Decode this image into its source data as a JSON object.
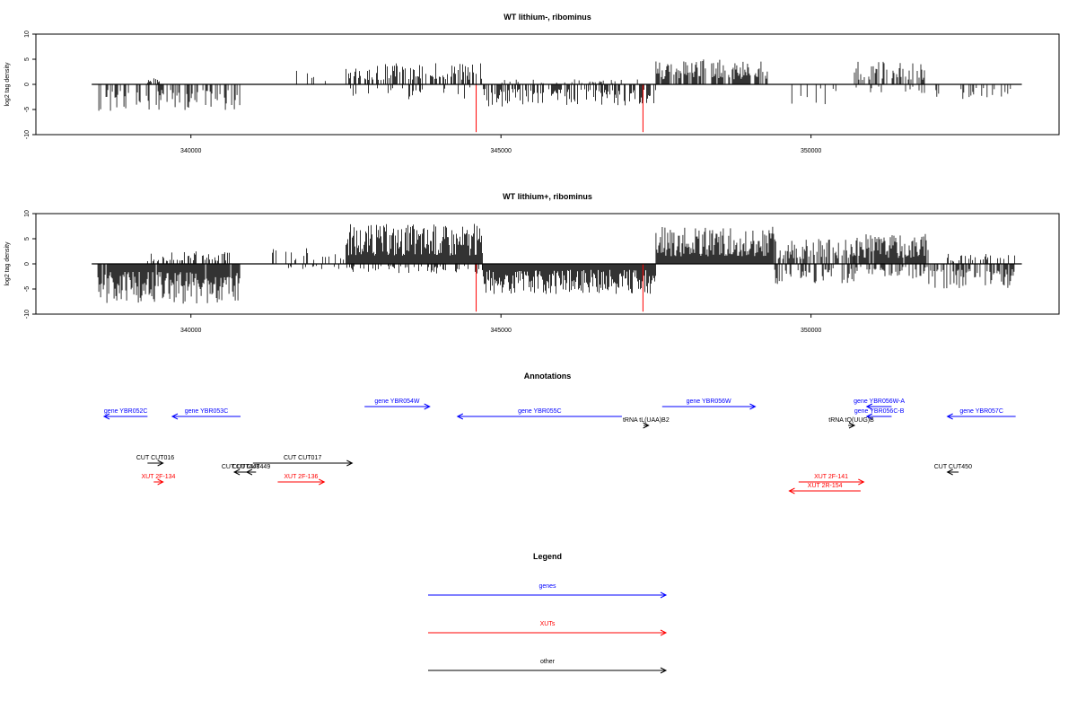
{
  "chart_data": [
    {
      "type": "bar",
      "title": "WT lithium-, ribominus",
      "ylabel": "log2 tag density",
      "xlabel": "",
      "xlim": [
        337500,
        354000
      ],
      "ylim": [
        -10,
        10
      ],
      "x_ticks": [
        340000,
        345000,
        350000
      ],
      "y_ticks": [
        -10,
        -5,
        0,
        5,
        10
      ],
      "x_tick_labels": [
        "340000",
        "345000",
        "350000"
      ],
      "y_tick_labels": [
        "-10",
        "-5",
        "0",
        "5",
        "10"
      ],
      "grid": false,
      "baseline": {
        "from": 338400,
        "to": 353400,
        "value": 0
      },
      "segments": [
        {
          "from": 338500,
          "to": 340800,
          "density": 0.5,
          "max": 5.5,
          "sign": "neg",
          "seed": 1
        },
        {
          "from": 339300,
          "to": 339500,
          "density": 0.6,
          "max": 1.2,
          "sign": "pos",
          "seed": 2
        },
        {
          "from": 341500,
          "to": 342200,
          "density": 0.15,
          "max": 3,
          "sign": "pos",
          "seed": 3
        },
        {
          "from": 342500,
          "to": 344700,
          "density": 0.5,
          "max": 4.2,
          "sign": "pos",
          "seed": 4
        },
        {
          "from": 342500,
          "to": 344500,
          "density": 0.2,
          "max": 3,
          "sign": "neg",
          "seed": 5
        },
        {
          "from": 344700,
          "to": 347500,
          "density": 0.6,
          "max": 4.5,
          "sign": "neg",
          "seed": 6
        },
        {
          "from": 345000,
          "to": 347200,
          "density": 0.15,
          "max": 1,
          "sign": "pos",
          "seed": 7
        },
        {
          "from": 347500,
          "to": 349300,
          "density": 0.75,
          "max": 5,
          "sign": "pos",
          "seed": 8
        },
        {
          "from": 349300,
          "to": 350500,
          "density": 0.12,
          "max": 4,
          "sign": "neg",
          "seed": 9
        },
        {
          "from": 350700,
          "to": 351900,
          "density": 0.5,
          "max": 4.5,
          "sign": "pos",
          "seed": 10
        },
        {
          "from": 350700,
          "to": 351900,
          "density": 0.15,
          "max": 2,
          "sign": "neg",
          "seed": 11
        },
        {
          "from": 352000,
          "to": 353300,
          "density": 0.2,
          "max": 3,
          "sign": "neg",
          "seed": 12
        }
      ],
      "highlight_bars": [
        {
          "x": 344600,
          "value": -9.5,
          "color": "#ff0000"
        },
        {
          "x": 347290,
          "value": -9.5,
          "color": "#ff0000"
        }
      ]
    },
    {
      "type": "bar",
      "title": "WT lithium+, ribominus",
      "ylabel": "log2 tag density",
      "xlabel": "",
      "xlim": [
        337500,
        354000
      ],
      "ylim": [
        -10,
        10
      ],
      "x_ticks": [
        340000,
        345000,
        350000
      ],
      "y_ticks": [
        -10,
        -5,
        0,
        5,
        10
      ],
      "x_tick_labels": [
        "340000",
        "345000",
        "350000"
      ],
      "y_tick_labels": [
        "-10",
        "-5",
        "0",
        "5",
        "10"
      ],
      "grid": false,
      "baseline": {
        "from": 338400,
        "to": 353400,
        "value": 0
      },
      "segments": [
        {
          "from": 338500,
          "to": 340800,
          "density": 0.95,
          "max": 8,
          "sign": "neg",
          "seed": 21
        },
        {
          "from": 339300,
          "to": 340700,
          "density": 0.4,
          "max": 2.5,
          "sign": "pos",
          "seed": 22
        },
        {
          "from": 341200,
          "to": 342500,
          "density": 0.3,
          "max": 3.5,
          "sign": "pos",
          "seed": 23
        },
        {
          "from": 341500,
          "to": 342500,
          "density": 0.15,
          "max": 1.5,
          "sign": "neg",
          "seed": 24
        },
        {
          "from": 342500,
          "to": 344700,
          "density": 1.0,
          "max": 8,
          "sign": "pos",
          "seed": 25
        },
        {
          "from": 342500,
          "to": 344700,
          "density": 0.35,
          "max": 2,
          "sign": "neg",
          "seed": 26
        },
        {
          "from": 344700,
          "to": 347500,
          "density": 1.0,
          "max": 6,
          "sign": "neg",
          "seed": 27
        },
        {
          "from": 347500,
          "to": 349400,
          "density": 1.0,
          "max": 7.5,
          "sign": "pos",
          "seed": 28
        },
        {
          "from": 349400,
          "to": 350700,
          "density": 0.7,
          "max": 5,
          "sign": "pos",
          "seed": 29
        },
        {
          "from": 349400,
          "to": 350700,
          "density": 0.5,
          "max": 4,
          "sign": "neg",
          "seed": 30
        },
        {
          "from": 350700,
          "to": 351900,
          "density": 0.9,
          "max": 6,
          "sign": "pos",
          "seed": 31
        },
        {
          "from": 350700,
          "to": 351900,
          "density": 0.4,
          "max": 3,
          "sign": "neg",
          "seed": 32
        },
        {
          "from": 351900,
          "to": 353300,
          "density": 0.6,
          "max": 5,
          "sign": "neg",
          "seed": 33
        },
        {
          "from": 352200,
          "to": 353300,
          "density": 0.2,
          "max": 2,
          "sign": "pos",
          "seed": 34
        }
      ],
      "highlight_bars": [
        {
          "x": 344600,
          "value": -9.5,
          "color": "#ff0000"
        },
        {
          "x": 347290,
          "value": -9.5,
          "color": "#ff0000"
        }
      ]
    }
  ],
  "annotations": {
    "title": "Annotations",
    "xlim": [
      337500,
      354000
    ],
    "items": [
      {
        "label": "gene YBR052C",
        "start": 338600,
        "end": 339300,
        "strand": "-",
        "color": "#0000ff",
        "row": 2
      },
      {
        "label": "gene YBR053C",
        "start": 339700,
        "end": 340800,
        "strand": "-",
        "color": "#0000ff",
        "row": 2
      },
      {
        "label": "gene YBR054W",
        "start": 342800,
        "end": 343850,
        "strand": "+",
        "color": "#0000ff",
        "row": 1
      },
      {
        "label": "gene YBR055C",
        "start": 344300,
        "end": 346950,
        "strand": "-",
        "color": "#0000ff",
        "row": 2
      },
      {
        "label": "tRNA tL(UAA)B2",
        "start": 347300,
        "end": 347380,
        "strand": "+",
        "color": "#000000",
        "row": 3
      },
      {
        "label": "gene YBR056W",
        "start": 347600,
        "end": 349100,
        "strand": "+",
        "color": "#0000ff",
        "row": 1
      },
      {
        "label": "gene YBR056W-A",
        "start": 350900,
        "end": 351300,
        "strand": "-",
        "color": "#0000ff",
        "row": 1
      },
      {
        "label": "gene YBR056C-B",
        "start": 350900,
        "end": 351300,
        "strand": "-",
        "color": "#0000ff",
        "row": 2
      },
      {
        "label": "tRNA tQ(UUG)B",
        "start": 350600,
        "end": 350700,
        "strand": "+",
        "color": "#000000",
        "row": 3
      },
      {
        "label": "gene YBR057C",
        "start": 352200,
        "end": 353300,
        "strand": "-",
        "color": "#0000ff",
        "row": 2
      },
      {
        "label": "CUT CUT016",
        "start": 339300,
        "end": 339550,
        "strand": "+",
        "color": "#000000",
        "row": 5
      },
      {
        "label": "CUT CUT448",
        "start": 340700,
        "end": 340900,
        "strand": "-",
        "color": "#000000",
        "row": 6
      },
      {
        "label": "CUT CUT449",
        "start": 340900,
        "end": 341050,
        "strand": "-",
        "color": "#000000",
        "row": 6
      },
      {
        "label": "CUT CUT017",
        "start": 341000,
        "end": 342600,
        "strand": "+",
        "color": "#000000",
        "row": 5
      },
      {
        "label": "XUT 2F-134",
        "start": 339400,
        "end": 339550,
        "strand": "+",
        "color": "#ff0000",
        "row": 7
      },
      {
        "label": "XUT 2F-136",
        "start": 341400,
        "end": 342150,
        "strand": "+",
        "color": "#ff0000",
        "row": 7
      },
      {
        "label": "XUT 2F-141",
        "start": 349800,
        "end": 350850,
        "strand": "+",
        "color": "#ff0000",
        "row": 7
      },
      {
        "label": "XUT 2R-154",
        "start": 349650,
        "end": 350800,
        "strand": "-",
        "color": "#ff0000",
        "row": 8
      },
      {
        "label": "CUT CUT450",
        "start": 352200,
        "end": 352380,
        "strand": "-",
        "color": "#000000",
        "row": 6
      }
    ]
  },
  "legend": {
    "title": "Legend",
    "items": [
      {
        "label": "genes",
        "color": "#0000ff"
      },
      {
        "label": "XUTs",
        "color": "#ff0000"
      },
      {
        "label": "other",
        "color": "#000000"
      }
    ]
  }
}
